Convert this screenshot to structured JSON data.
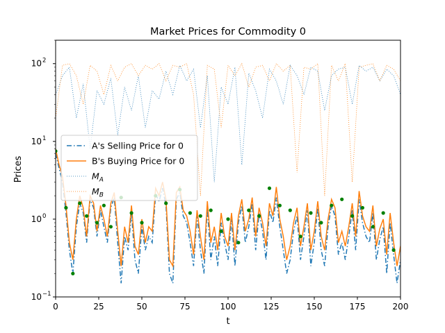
{
  "chart_data": {
    "type": "line",
    "title": "Market Prices for Commodity 0",
    "xlabel": "t",
    "ylabel": "Prices",
    "xlim": [
      0,
      200
    ],
    "ylim": [
      0.1,
      200
    ],
    "yscale": "log",
    "legend_position": "center-left",
    "xticks": [
      0,
      25,
      50,
      75,
      100,
      125,
      150,
      175,
      200
    ],
    "xtick_labels": [
      "0",
      "25",
      "50",
      "75",
      "100",
      "125",
      "150",
      "175",
      "200"
    ],
    "yticks": [
      0.1,
      1,
      10,
      100
    ],
    "ytick_labels": [
      "10",
      "10",
      "10",
      "10"
    ],
    "ytick_exponents": [
      "−1",
      "0",
      "1",
      "2"
    ],
    "series": [
      {
        "name": "A's Selling Price for 0",
        "style": "dashdot",
        "color": "#1f77b4",
        "x": [
          0,
          2,
          4,
          6,
          8,
          10,
          12,
          14,
          16,
          18,
          20,
          22,
          24,
          26,
          28,
          30,
          32,
          34,
          36,
          38,
          40,
          42,
          44,
          46,
          48,
          50,
          52,
          54,
          56,
          58,
          60,
          62,
          64,
          66,
          68,
          70,
          72,
          74,
          76,
          78,
          80,
          82,
          84,
          86,
          88,
          90,
          92,
          94,
          96,
          98,
          100,
          102,
          104,
          106,
          108,
          110,
          112,
          114,
          116,
          118,
          120,
          122,
          124,
          126,
          128,
          130,
          132,
          134,
          136,
          138,
          140,
          142,
          144,
          146,
          148,
          150,
          152,
          154,
          156,
          158,
          160,
          162,
          164,
          166,
          168,
          170,
          172,
          174,
          176,
          178,
          180,
          182,
          184,
          186,
          188,
          190,
          192,
          194,
          196,
          198,
          200
        ],
        "values": [
          7,
          4.5,
          3,
          1.2,
          0.4,
          0.2,
          0.8,
          1.6,
          1.2,
          0.5,
          1.8,
          1.4,
          0.6,
          1.3,
          0.8,
          0.5,
          1.4,
          1.9,
          0.5,
          0.15,
          0.6,
          0.4,
          1.2,
          0.3,
          0.2,
          0.8,
          0.4,
          0.6,
          0.5,
          2.1,
          1.7,
          2.5,
          1.5,
          0.2,
          0.15,
          1.8,
          2.2,
          1.1,
          0.9,
          0.5,
          0.25,
          1.1,
          0.4,
          0.2,
          1.4,
          0.3,
          0.6,
          0.25,
          0.9,
          0.5,
          0.3,
          1.0,
          0.25,
          0.9,
          1.5,
          0.5,
          0.8,
          1.6,
          0.4,
          1.2,
          0.7,
          0.3,
          1.3,
          0.9,
          1.9,
          0.8,
          0.4,
          0.2,
          0.3,
          0.7,
          1.1,
          0.3,
          0.6,
          1.3,
          0.25,
          0.5,
          1.4,
          0.4,
          0.25,
          0.8,
          1.5,
          1.1,
          0.35,
          0.5,
          0.3,
          0.6,
          1.3,
          0.4,
          1.8,
          0.9,
          0.6,
          0.5,
          1.2,
          0.3,
          0.55,
          0.8,
          0.2,
          0.9,
          0.35,
          0.15,
          0.3
        ]
      },
      {
        "name": "B's Buying Price for 0",
        "style": "solid",
        "color": "#ff7f0e",
        "x": [
          0,
          2,
          4,
          6,
          8,
          10,
          12,
          14,
          16,
          18,
          20,
          22,
          24,
          26,
          28,
          30,
          32,
          34,
          36,
          38,
          40,
          42,
          44,
          46,
          48,
          50,
          52,
          54,
          56,
          58,
          60,
          62,
          64,
          66,
          68,
          70,
          72,
          74,
          76,
          78,
          80,
          82,
          84,
          86,
          88,
          90,
          92,
          94,
          96,
          98,
          100,
          102,
          104,
          106,
          108,
          110,
          112,
          114,
          116,
          118,
          120,
          122,
          124,
          126,
          128,
          130,
          132,
          134,
          136,
          138,
          140,
          142,
          144,
          146,
          148,
          150,
          152,
          154,
          156,
          158,
          160,
          162,
          164,
          166,
          168,
          170,
          172,
          174,
          176,
          178,
          180,
          182,
          184,
          186,
          188,
          190,
          192,
          194,
          196,
          198,
          200
        ],
        "values": [
          8,
          5,
          3.5,
          1.5,
          0.5,
          0.3,
          1.0,
          2.0,
          1.4,
          0.6,
          2.0,
          1.6,
          0.7,
          1.5,
          1.0,
          0.6,
          1.6,
          2.2,
          0.7,
          0.25,
          0.8,
          0.5,
          1.5,
          0.45,
          0.35,
          1.0,
          0.5,
          0.8,
          0.7,
          2.5,
          2.0,
          3.0,
          1.8,
          0.3,
          0.25,
          2.2,
          2.6,
          1.3,
          1.1,
          0.7,
          0.35,
          1.3,
          0.6,
          0.3,
          1.7,
          0.5,
          0.8,
          0.4,
          1.2,
          0.6,
          0.45,
          1.2,
          0.4,
          1.1,
          1.8,
          0.7,
          1.0,
          1.9,
          0.6,
          1.4,
          0.9,
          0.45,
          1.6,
          1.1,
          2.6,
          1.0,
          0.6,
          0.3,
          0.45,
          0.9,
          1.4,
          0.45,
          0.8,
          1.6,
          0.4,
          0.7,
          1.7,
          0.6,
          0.4,
          1.0,
          1.8,
          1.4,
          0.5,
          0.7,
          0.45,
          0.8,
          1.6,
          0.6,
          2.3,
          1.1,
          0.8,
          0.7,
          1.5,
          0.45,
          0.75,
          1.0,
          0.35,
          1.2,
          0.5,
          0.25,
          0.45
        ]
      },
      {
        "name": "M_A",
        "legend_main": "M",
        "legend_sub": "A",
        "style": "dotted",
        "color": "#1f77b4",
        "x": [
          0,
          4,
          8,
          12,
          16,
          20,
          24,
          28,
          32,
          36,
          40,
          44,
          48,
          52,
          56,
          60,
          64,
          68,
          72,
          76,
          80,
          84,
          88,
          92,
          96,
          100,
          104,
          108,
          112,
          116,
          120,
          124,
          128,
          132,
          136,
          140,
          144,
          148,
          152,
          156,
          160,
          164,
          168,
          172,
          176,
          180,
          184,
          188,
          192,
          196,
          200
        ],
        "values": [
          40,
          70,
          90,
          20,
          55,
          8,
          45,
          30,
          65,
          12,
          50,
          25,
          70,
          15,
          45,
          35,
          80,
          40,
          95,
          60,
          85,
          15,
          70,
          3,
          50,
          30,
          90,
          5,
          75,
          45,
          20,
          85,
          60,
          30,
          95,
          70,
          40,
          90,
          80,
          25,
          70,
          85,
          90,
          30,
          95,
          80,
          90,
          60,
          85,
          70,
          40
        ]
      },
      {
        "name": "M_B",
        "legend_main": "M",
        "legend_sub": "B",
        "style": "dotted",
        "color": "#ff7f0e",
        "x": [
          0,
          4,
          8,
          12,
          16,
          20,
          24,
          28,
          32,
          36,
          40,
          44,
          48,
          52,
          56,
          60,
          64,
          68,
          72,
          76,
          80,
          84,
          88,
          92,
          96,
          100,
          104,
          108,
          112,
          116,
          120,
          124,
          128,
          132,
          136,
          140,
          144,
          148,
          152,
          156,
          160,
          164,
          168,
          172,
          176,
          180,
          184,
          188,
          192,
          196,
          200
        ],
        "values": [
          20,
          95,
          100,
          70,
          30,
          95,
          80,
          40,
          95,
          60,
          90,
          100,
          70,
          95,
          85,
          100,
          60,
          95,
          90,
          100,
          40,
          2,
          95,
          85,
          15,
          95,
          70,
          100,
          50,
          90,
          95,
          60,
          100,
          80,
          95,
          4,
          90,
          85,
          100,
          2,
          95,
          60,
          100,
          3,
          90,
          95,
          100,
          60,
          95,
          85,
          60
        ]
      }
    ],
    "scatter": {
      "color": "#008000",
      "x": [
        0,
        6,
        10,
        14,
        18,
        24,
        28,
        32,
        38,
        44,
        50,
        58,
        64,
        72,
        78,
        84,
        90,
        96,
        100,
        106,
        112,
        118,
        124,
        130,
        136,
        142,
        148,
        154,
        160,
        166,
        172,
        178,
        184,
        190,
        196
      ],
      "values": [
        7.5,
        1.4,
        0.2,
        1.6,
        1.1,
        0.9,
        1.5,
        0.8,
        1.9,
        1.2,
        0.9,
        2.0,
        1.6,
        2.4,
        1.2,
        1.1,
        1.3,
        0.7,
        1.0,
        0.5,
        1.3,
        1.1,
        2.5,
        1.5,
        1.3,
        0.6,
        1.2,
        0.9,
        1.5,
        1.8,
        1.1,
        1.4,
        0.8,
        1.2,
        0.4
      ]
    }
  }
}
